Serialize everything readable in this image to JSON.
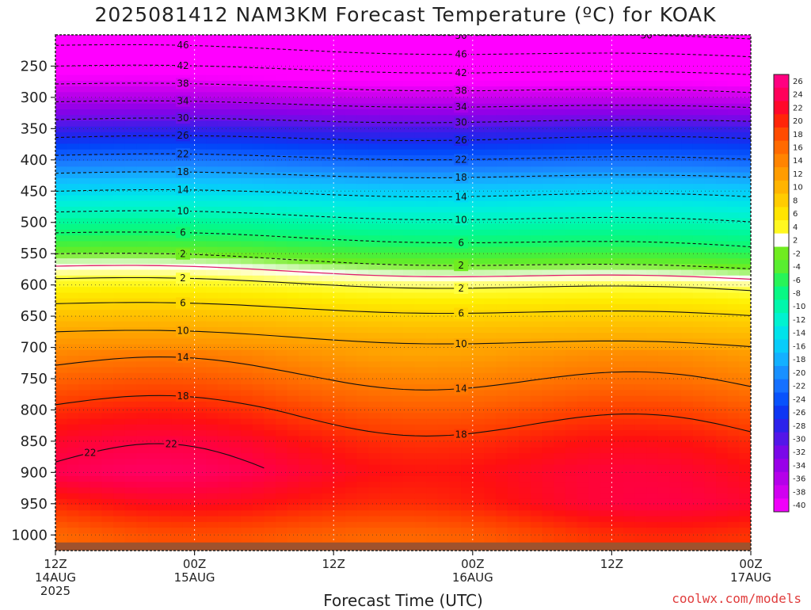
{
  "chart_data": {
    "type": "heatmap",
    "title": "2025081412 NAM3KM Forecast Temperature (ºC) for KOAK",
    "xlabel": "Forecast Time (UTC)",
    "ylabel": "",
    "x_ticks": [
      {
        "hour": 0,
        "lines": [
          "12Z",
          "14AUG",
          "2025"
        ]
      },
      {
        "hour": 12,
        "lines": [
          "00Z",
          "15AUG"
        ]
      },
      {
        "hour": 24,
        "lines": [
          "12Z"
        ]
      },
      {
        "hour": 36,
        "lines": [
          "00Z",
          "16AUG"
        ]
      },
      {
        "hour": 48,
        "lines": [
          "12Z"
        ]
      },
      {
        "hour": 60,
        "lines": [
          "00Z",
          "17AUG"
        ]
      }
    ],
    "xlim": [
      0,
      60
    ],
    "y_axis": "pressure_hPa",
    "y_ticks": [
      250,
      300,
      350,
      400,
      450,
      500,
      550,
      600,
      650,
      700,
      750,
      800,
      850,
      900,
      950,
      1000
    ],
    "ylim": [
      200,
      1025
    ],
    "colorbar_labels": [
      26,
      24,
      22,
      20,
      18,
      16,
      14,
      12,
      10,
      8,
      6,
      4,
      2,
      -2,
      -4,
      -6,
      -8,
      -10,
      -12,
      -14,
      -16,
      -18,
      -20,
      -22,
      -24,
      -26,
      -28,
      -30,
      -32,
      -34,
      -36,
      -38,
      -40
    ],
    "color_scale": [
      {
        "t": -50,
        "c": "#ff00ff"
      },
      {
        "t": -40,
        "c": "#ff00ff"
      },
      {
        "t": -38,
        "c": "#e000f4"
      },
      {
        "t": -36,
        "c": "#c200ec"
      },
      {
        "t": -34,
        "c": "#a800e8"
      },
      {
        "t": -32,
        "c": "#8a00e8"
      },
      {
        "t": -30,
        "c": "#6a10e8"
      },
      {
        "t": -28,
        "c": "#3c1ce8"
      },
      {
        "t": -26,
        "c": "#1c28ee"
      },
      {
        "t": -24,
        "c": "#0044f8"
      },
      {
        "t": -22,
        "c": "#1060ff"
      },
      {
        "t": -20,
        "c": "#1a80ff"
      },
      {
        "t": -18,
        "c": "#16a0ff"
      },
      {
        "t": -16,
        "c": "#10c0ff"
      },
      {
        "t": -14,
        "c": "#00d8f4"
      },
      {
        "t": -12,
        "c": "#00eee0"
      },
      {
        "t": -10,
        "c": "#00f6c0"
      },
      {
        "t": -8,
        "c": "#00f898"
      },
      {
        "t": -6,
        "c": "#10f870"
      },
      {
        "t": -4,
        "c": "#40f040"
      },
      {
        "t": -2,
        "c": "#70ec20"
      },
      {
        "t": 0,
        "c": "#ffffff"
      },
      {
        "t": 2,
        "c": "#ffff40"
      },
      {
        "t": 4,
        "c": "#fff000"
      },
      {
        "t": 6,
        "c": "#ffd800"
      },
      {
        "t": 8,
        "c": "#ffc000"
      },
      {
        "t": 10,
        "c": "#ffa800"
      },
      {
        "t": 12,
        "c": "#ff9000"
      },
      {
        "t": 14,
        "c": "#ff7800"
      },
      {
        "t": 16,
        "c": "#ff5c00"
      },
      {
        "t": 18,
        "c": "#ff3a00"
      },
      {
        "t": 20,
        "c": "#ff1010"
      },
      {
        "t": 22,
        "c": "#ff0044"
      },
      {
        "t": 24,
        "c": "#ff0070"
      },
      {
        "t": 26,
        "c": "#ff0090"
      }
    ],
    "levels_hPa": [
      200,
      250,
      300,
      350,
      400,
      450,
      500,
      550,
      600,
      650,
      700,
      750,
      800,
      850,
      900,
      950,
      1000
    ],
    "temperature_start_C": [
      -48,
      -42,
      -35,
      -28,
      -21,
      -14,
      -8,
      -2,
      3,
      8,
      12,
      15.5,
      18.5,
      21,
      22.5,
      19,
      15
    ],
    "temperature_end_C": [
      -51,
      -44,
      -37,
      -28,
      -22,
      -15,
      -10,
      -5,
      1,
      6,
      10,
      13,
      16,
      18.5,
      20,
      21,
      18
    ],
    "contours_below_freezing_C": [
      -50,
      -46,
      -42,
      -38,
      -34,
      -30,
      -26,
      -22,
      -18,
      -14,
      -10,
      -6,
      -2
    ],
    "contours_above_freezing_C": [
      2,
      6,
      10,
      14,
      18,
      22
    ],
    "contour_label_text": {
      "-50": "50",
      "-46": "46",
      "-42": "42",
      "-38": "38",
      "-34": "34",
      "-30": "30",
      "-26": "26",
      "-22": "22",
      "-18": "18",
      "-14": "14",
      "-10": "10",
      "-6": "6",
      "-2": "2",
      "2": "2",
      "6": "6",
      "10": "10",
      "14": "14",
      "18": "18",
      "22": "22"
    },
    "freezing_line_color": "#e0206a",
    "ground_color": "#a0522d",
    "grid": true
  },
  "credit": "coolwx.com/models"
}
